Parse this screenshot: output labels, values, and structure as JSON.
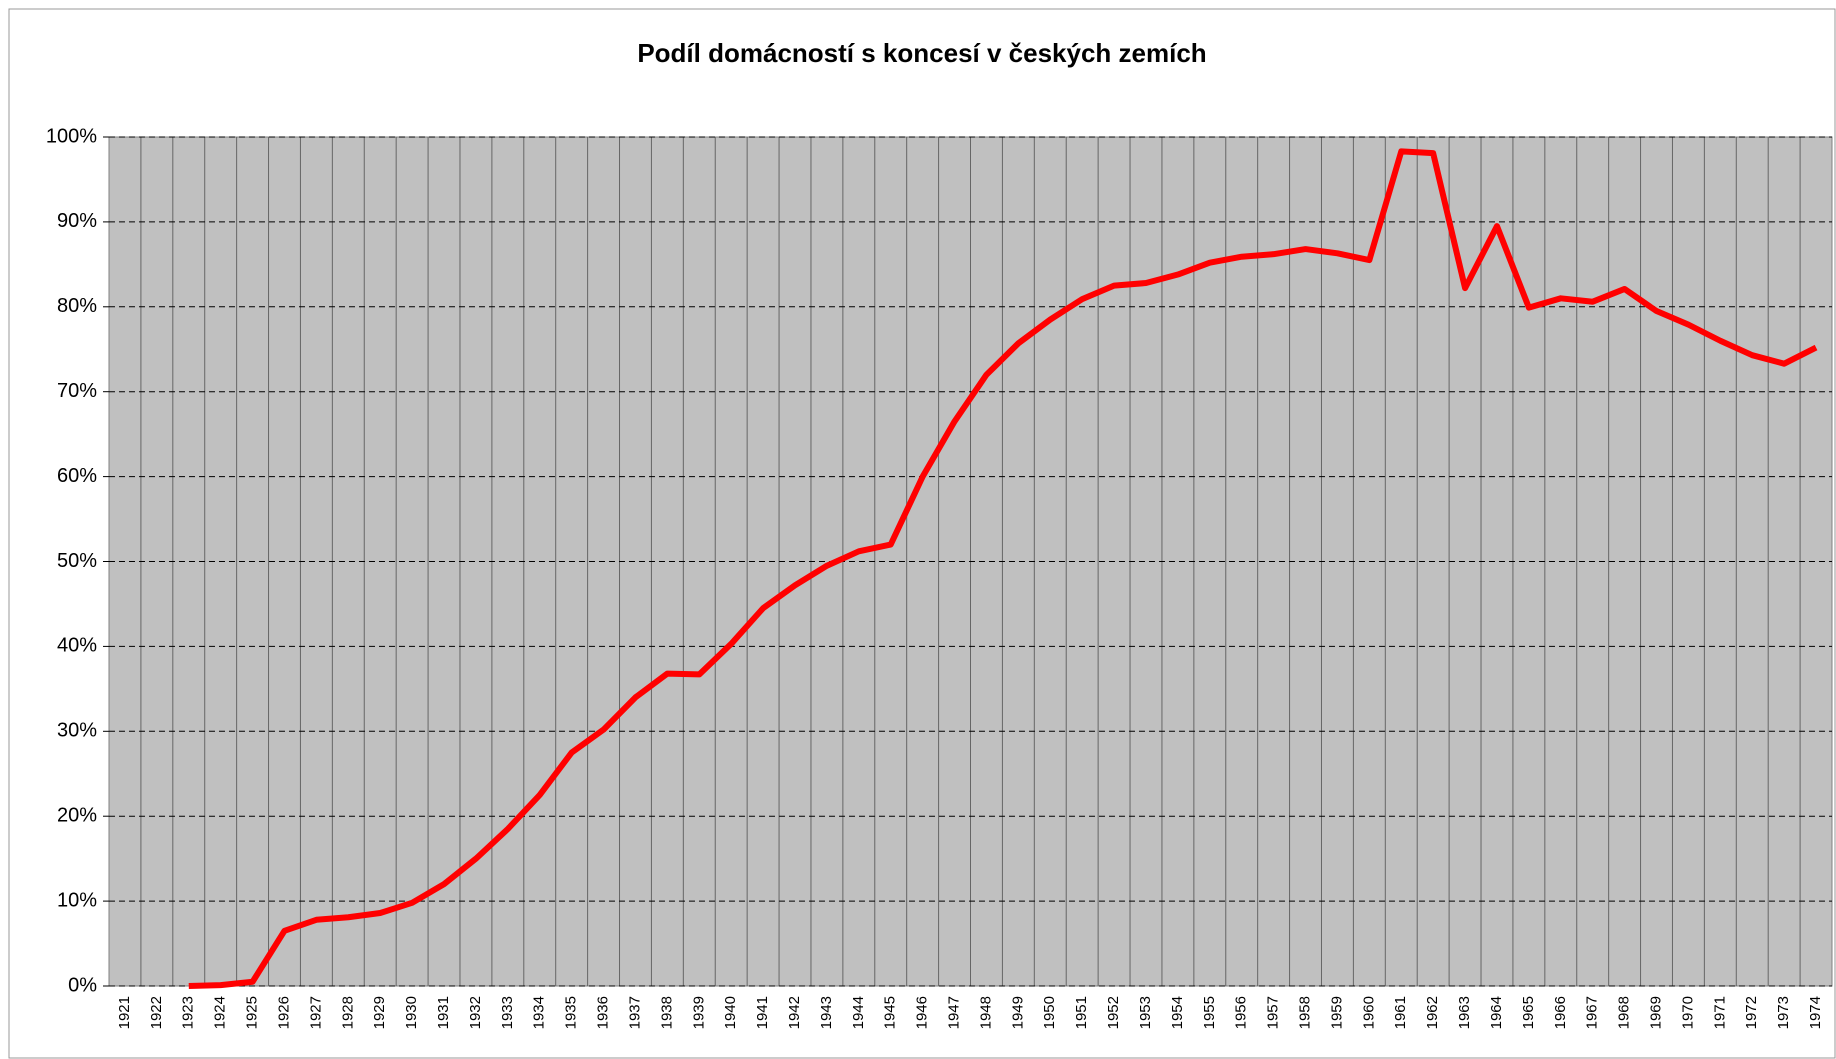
{
  "chart_data": {
    "type": "line",
    "title": "Podíl domácností s koncesí v českých zemích",
    "categories": [
      "1921",
      "1922",
      "1923",
      "1924",
      "1925",
      "1926",
      "1927",
      "1928",
      "1929",
      "1930",
      "1931",
      "1932",
      "1933",
      "1934",
      "1935",
      "1936",
      "1937",
      "1938",
      "1939",
      "1940",
      "1941",
      "1942",
      "1943",
      "1944",
      "1945",
      "1946",
      "1947",
      "1948",
      "1949",
      "1950",
      "1951",
      "1952",
      "1953",
      "1954",
      "1955",
      "1956",
      "1957",
      "1958",
      "1959",
      "1960",
      "1961",
      "1962",
      "1963",
      "1964",
      "1965",
      "1966",
      "1967",
      "1968",
      "1969",
      "1970",
      "1971",
      "1972",
      "1973",
      "1974"
    ],
    "series": [
      {
        "name": "Podíl domácností",
        "color": "#ff0000",
        "values": [
          null,
          null,
          0,
          0.1,
          0.5,
          6.5,
          7.8,
          8.1,
          8.6,
          9.8,
          12,
          15,
          18.5,
          22.5,
          27.5,
          30.2,
          34,
          36.8,
          36.7,
          40.3,
          44.5,
          47.2,
          49.5,
          51.2,
          52,
          60,
          66.5,
          72,
          75.7,
          78.5,
          80.9,
          82.5,
          82.8,
          83.8,
          85.2,
          85.9,
          86.2,
          86.8,
          86.3,
          85.5,
          98.3,
          98.1,
          82.2,
          89.5,
          79.9,
          81,
          80.6,
          82.1,
          79.5,
          77.9,
          76,
          74.3,
          73.3,
          75.2
        ]
      }
    ],
    "ylim": [
      0,
      100
    ],
    "yticks": [
      {
        "value": 0,
        "label": "0%"
      },
      {
        "value": 10,
        "label": "10%"
      },
      {
        "value": 20,
        "label": "20%"
      },
      {
        "value": 30,
        "label": "30%"
      },
      {
        "value": 40,
        "label": "40%"
      },
      {
        "value": 50,
        "label": "50%"
      },
      {
        "value": 60,
        "label": "60%"
      },
      {
        "value": 70,
        "label": "70%"
      },
      {
        "value": 80,
        "label": "80%"
      },
      {
        "value": 90,
        "label": "90%"
      },
      {
        "value": 100,
        "label": "100%"
      }
    ],
    "grid": true,
    "plot_background": "#c0c0c0"
  }
}
